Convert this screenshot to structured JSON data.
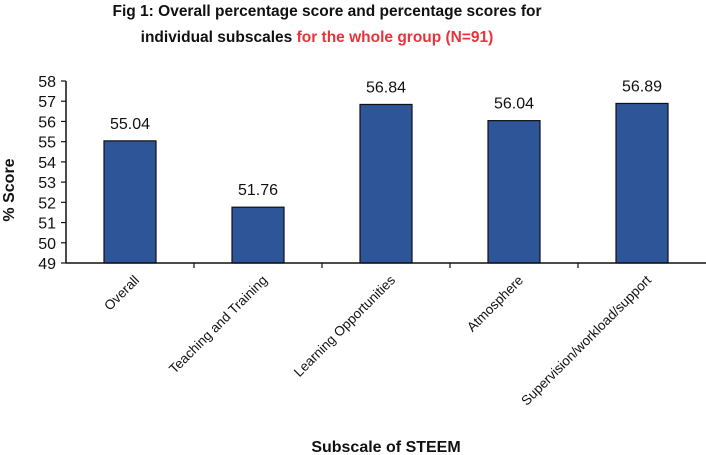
{
  "chart_data": {
    "type": "bar",
    "title_line1": "Fig 1: Overall percentage score and percentage scores for",
    "title_line2_black": "individual subscales ",
    "title_line2_red": "for the whole group (N=91)",
    "xlabel": "Subscale of STEEM",
    "ylabel": "% Score",
    "categories": [
      "Overall",
      "Teaching and Training",
      "Learning Opportunities",
      "Atmosphere",
      "Supervision/workload/support"
    ],
    "values": [
      55.04,
      51.76,
      56.84,
      56.04,
      56.89
    ],
    "data_labels": [
      "55.04",
      "51.76",
      "56.84",
      "56.04",
      "56.89"
    ],
    "ylim": [
      49,
      58
    ],
    "yticks": [
      49,
      50,
      51,
      52,
      53,
      54,
      55,
      56,
      57,
      58
    ],
    "grid": false,
    "legend": "none",
    "bar_color": "#2e5597",
    "bar_edge_color": "#111111",
    "title_accent_color": "#e8333a"
  }
}
